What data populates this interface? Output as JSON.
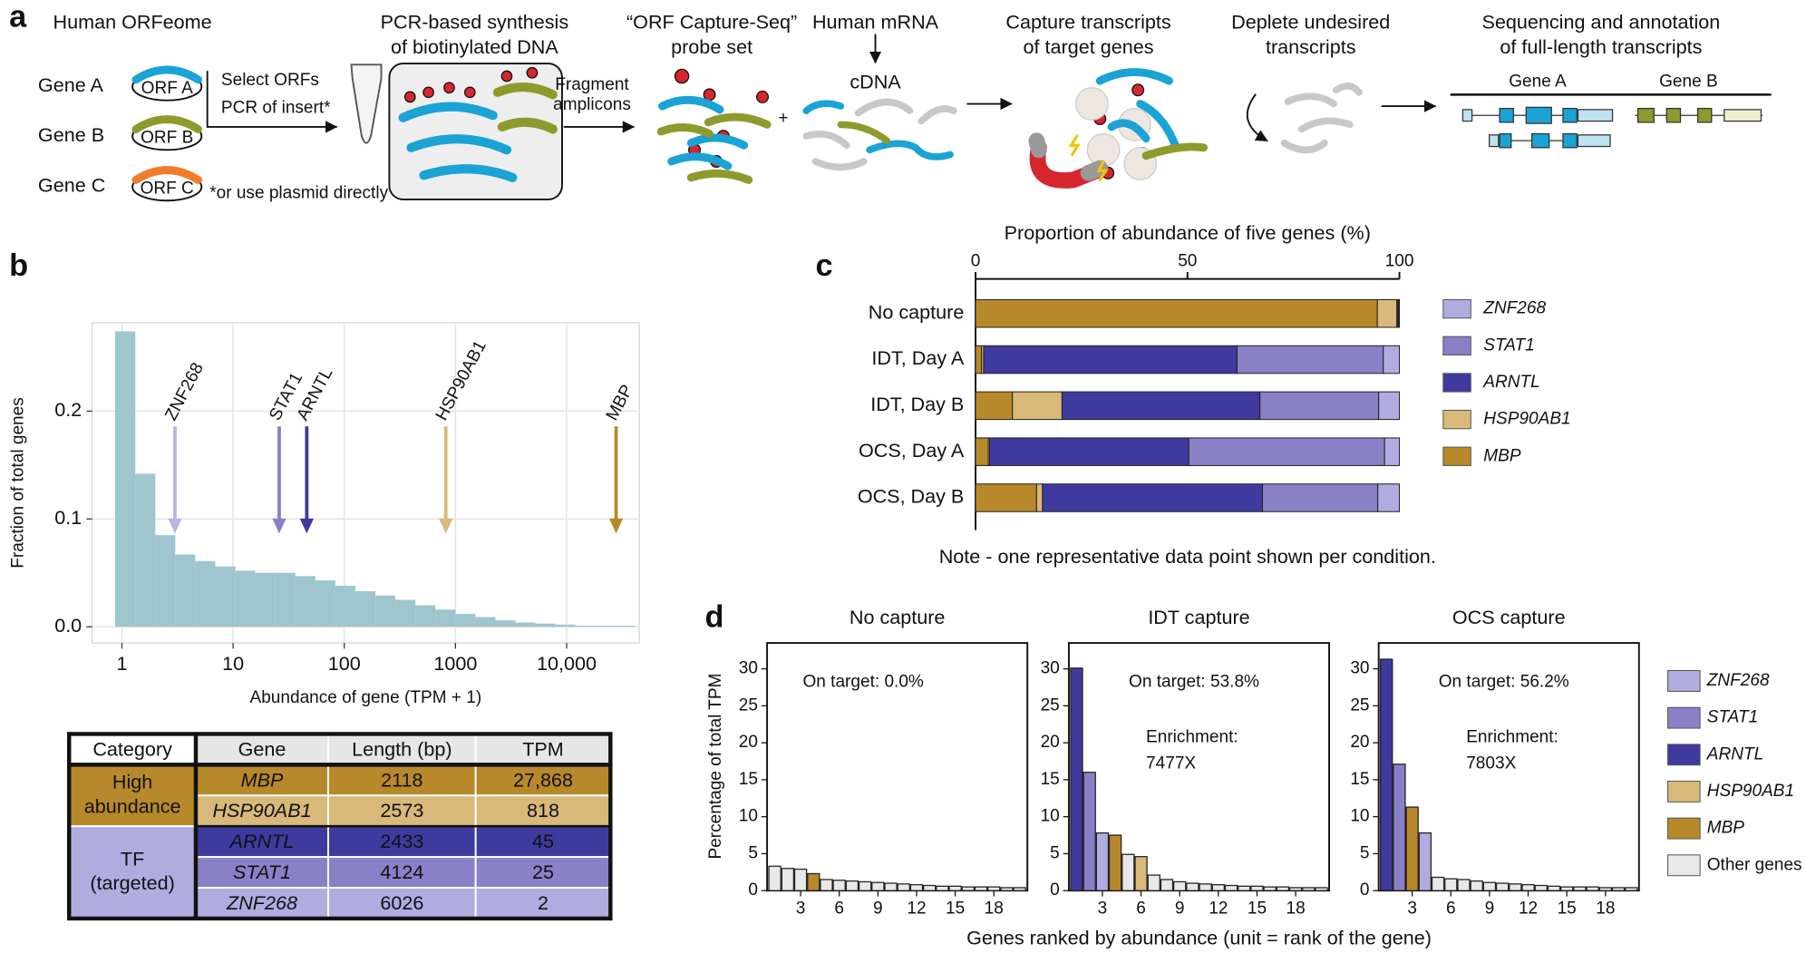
{
  "panel_labels": [
    "a",
    "b",
    "c",
    "d"
  ],
  "diagram": {
    "title": "Human ORFeome",
    "genes": [
      {
        "label": "Gene A",
        "orf": "ORF A"
      },
      {
        "label": "Gene B",
        "orf": "ORF B"
      },
      {
        "label": "Gene C",
        "orf": "ORF C"
      }
    ],
    "select": [
      "Select ORFs",
      "PCR of insert*"
    ],
    "footnote": "*or use plasmid directly",
    "fragment": [
      "Fragment",
      "amplicons"
    ],
    "steps": [
      {
        "lines": [
          "PCR-based synthesis",
          "of biotinylated DNA"
        ]
      },
      {
        "lines": [
          "“ORF Capture-Seq”",
          "probe set"
        ]
      },
      {
        "lines": [
          "Human mRNA"
        ]
      },
      {
        "lines": [
          "Capture transcripts",
          "of target genes"
        ]
      },
      {
        "lines": [
          "Deplete undesired",
          "transcripts"
        ]
      },
      {
        "lines": [
          "Sequencing and annotation",
          "of full-length transcripts"
        ]
      }
    ],
    "plus": "+",
    "cdna": "cDNA",
    "annotated_genes": [
      "Gene A",
      "Gene B"
    ]
  },
  "chart_data": [
    {
      "type": "histogram",
      "ylabel": "Fraction of total genes",
      "xlabel": "Abundance of gene (TPM + 1)",
      "xlog": true,
      "color": "#9fc5cf",
      "grid": true,
      "bins": [
        0.87,
        1.32,
        2.0,
        3.02,
        4.57,
        6.92,
        10.5,
        15.8,
        24.0,
        36.3,
        55.0,
        83.2,
        126,
        191,
        288,
        437,
        661,
        1000,
        1514,
        2291,
        3467,
        5248,
        7943,
        12023,
        18197,
        27542,
        41687
      ],
      "values": [
        0.274,
        0.142,
        0.085,
        0.067,
        0.061,
        0.056,
        0.052,
        0.05,
        0.05,
        0.047,
        0.043,
        0.038,
        0.033,
        0.029,
        0.025,
        0.02,
        0.016,
        0.012,
        0.009,
        0.006,
        0.004,
        0.003,
        0.002,
        0.001,
        0.001,
        0.001
      ],
      "xlim": [
        0.54,
        45000
      ],
      "xticks": [
        1,
        10,
        100,
        1000,
        {
          "value": 10000,
          "label": "10,000"
        }
      ],
      "ylim": [
        -0.015,
        0.282
      ],
      "yticks": [
        {
          "value": 0,
          "label": "0.0"
        },
        {
          "value": 0.1,
          "label": "0.1"
        },
        {
          "value": 0.2,
          "label": "0.2"
        }
      ],
      "annotations": [
        {
          "text": "ZNF268",
          "x": 3,
          "color": "#b9b3e0"
        },
        {
          "text": "STAT1",
          "x": 26,
          "color": "#8a80c8"
        },
        {
          "text": "ARNTL",
          "x": 46,
          "color": "#3f3a9e"
        },
        {
          "text": "HSP90AB1",
          "x": 819,
          "color": "#d8b97a"
        },
        {
          "text": "MBP",
          "x": 27869,
          "color": "#b8892a"
        }
      ]
    },
    {
      "type": "stacked_barh",
      "title": "Proportion of abundance of five genes (%)",
      "note": "Note - one representative data point shown per condition.",
      "categories": [
        "No capture",
        "IDT, Day A",
        "IDT, Day B",
        "OCS, Day A",
        "OCS, Day B"
      ],
      "series": [
        {
          "name": "ZNF268",
          "color": "#b1ace0",
          "values": [
            0.2,
            3.8,
            4.9,
            3.5,
            5.1
          ]
        },
        {
          "name": "STAT1",
          "color": "#8a80c8",
          "values": [
            0.1,
            34.5,
            28.0,
            46.2,
            27.2
          ]
        },
        {
          "name": "ARNTL",
          "color": "#3f3a9e",
          "values": [
            0.3,
            59.8,
            46.7,
            47.0,
            51.9
          ]
        },
        {
          "name": "HSP90AB1",
          "color": "#d8b97a",
          "values": [
            4.6,
            0.5,
            11.7,
            0.3,
            1.4
          ]
        },
        {
          "name": "MBP",
          "color": "#b8892a",
          "values": [
            94.8,
            1.4,
            8.7,
            3.0,
            14.4
          ]
        }
      ],
      "xlim": [
        0,
        100
      ],
      "xticks": [
        0,
        50,
        100
      ]
    },
    {
      "type": "bar",
      "title": "No capture",
      "annotations": [
        "On target: 0.0%"
      ],
      "x": [
        1,
        2,
        3,
        4,
        5,
        6,
        7,
        8,
        9,
        10,
        11,
        12,
        13,
        14,
        15,
        16,
        17,
        18,
        19,
        20
      ],
      "values": [
        3.3,
        3.0,
        2.9,
        2.3,
        1.5,
        1.4,
        1.3,
        1.2,
        1.1,
        1.0,
        0.9,
        0.8,
        0.7,
        0.6,
        0.6,
        0.5,
        0.5,
        0.5,
        0.4,
        0.4
      ],
      "colors": [
        "#e8e8e8",
        "#e8e8e8",
        "#e8e8e8",
        "#b8892a",
        "#e8e8e8",
        "#e8e8e8",
        "#e8e8e8",
        "#e8e8e8",
        "#e8e8e8",
        "#e8e8e8",
        "#e8e8e8",
        "#e8e8e8",
        "#e8e8e8",
        "#e8e8e8",
        "#e8e8e8",
        "#e8e8e8",
        "#e8e8e8",
        "#e8e8e8",
        "#e8e8e8",
        "#e8e8e8"
      ],
      "xlim": [
        0.4,
        20.6
      ],
      "xticks": [
        3,
        6,
        9,
        12,
        15,
        18
      ],
      "ylim": [
        0,
        33.5
      ],
      "yticks": [
        0,
        5,
        10,
        15,
        20,
        25,
        30
      ]
    },
    {
      "type": "bar",
      "title": "IDT capture",
      "annotations": [
        "On target: 53.8%",
        "Enrichment:",
        "7477X"
      ],
      "x": [
        1,
        2,
        3,
        4,
        5,
        6,
        7,
        8,
        9,
        10,
        11,
        12,
        13,
        14,
        15,
        16,
        17,
        18,
        19,
        20
      ],
      "values": [
        30.1,
        16.0,
        7.8,
        7.5,
        4.9,
        4.6,
        2.1,
        1.5,
        1.2,
        1.0,
        0.9,
        0.8,
        0.7,
        0.6,
        0.6,
        0.5,
        0.5,
        0.4,
        0.4,
        0.4
      ],
      "colors": [
        "#3f3a9e",
        "#8a80c8",
        "#b1ace0",
        "#b8892a",
        "#e8e8e8",
        "#d8b97a",
        "#e8e8e8",
        "#e8e8e8",
        "#e8e8e8",
        "#e8e8e8",
        "#e8e8e8",
        "#e8e8e8",
        "#e8e8e8",
        "#e8e8e8",
        "#e8e8e8",
        "#e8e8e8",
        "#e8e8e8",
        "#e8e8e8",
        "#e8e8e8",
        "#e8e8e8"
      ],
      "xlim": [
        0.4,
        20.6
      ],
      "xticks": [
        3,
        6,
        9,
        12,
        15,
        18
      ],
      "ylim": [
        0,
        33.5
      ],
      "yticks": [
        0,
        5,
        10,
        15,
        20,
        25,
        30
      ]
    },
    {
      "type": "bar",
      "title": "OCS capture",
      "annotations": [
        "On target: 56.2%",
        "Enrichment:",
        "7803X"
      ],
      "x": [
        1,
        2,
        3,
        4,
        5,
        6,
        7,
        8,
        9,
        10,
        11,
        12,
        13,
        14,
        15,
        16,
        17,
        18,
        19,
        20
      ],
      "values": [
        31.3,
        17.1,
        11.3,
        7.8,
        1.8,
        1.6,
        1.5,
        1.3,
        1.1,
        1.0,
        0.9,
        0.8,
        0.7,
        0.6,
        0.5,
        0.5,
        0.5,
        0.4,
        0.4,
        0.4
      ],
      "colors": [
        "#3f3a9e",
        "#8a80c8",
        "#b8892a",
        "#b1ace0",
        "#e8e8e8",
        "#e8e8e8",
        "#e8e8e8",
        "#e8e8e8",
        "#e8e8e8",
        "#e8e8e8",
        "#e8e8e8",
        "#e8e8e8",
        "#e8e8e8",
        "#e8e8e8",
        "#e8e8e8",
        "#e8e8e8",
        "#e8e8e8",
        "#e8e8e8",
        "#e8e8e8",
        "#e8e8e8"
      ],
      "xlim": [
        0.4,
        20.6
      ],
      "xticks": [
        3,
        6,
        9,
        12,
        15,
        18
      ],
      "ylim": [
        0,
        33.5
      ],
      "yticks": [
        0,
        5,
        10,
        15,
        20,
        25,
        30
      ]
    }
  ],
  "panel_d": {
    "ylabel": "Percentage of total TPM",
    "xlabel": "Genes ranked by abundance (unit = rank of the gene)",
    "legend": [
      {
        "name": "ZNF268",
        "color": "#b1ace0"
      },
      {
        "name": "STAT1",
        "color": "#8a80c8"
      },
      {
        "name": "ARNTL",
        "color": "#3f3a9e"
      },
      {
        "name": "HSP90AB1",
        "color": "#d8b97a"
      },
      {
        "name": "MBP",
        "color": "#b8892a"
      },
      {
        "name": "Other genes",
        "color": "#e8e8e8"
      }
    ]
  },
  "table": {
    "header": [
      "Category",
      "Gene",
      "Length (bp)",
      "TPM"
    ],
    "groups": [
      {
        "label": [
          "High",
          "abundance"
        ],
        "color": "#b8892a",
        "rows": [
          {
            "cells": [
              "MBP",
              "2118",
              "27,868"
            ],
            "color": "#b8892a",
            "text": "#111"
          },
          {
            "cells": [
              "HSP90AB1",
              "2573",
              "818"
            ],
            "color": "#d8b97a",
            "text": "#111"
          }
        ]
      },
      {
        "label": [
          "TF",
          "(targeted)"
        ],
        "color": "#b1ace0",
        "rows": [
          {
            "cells": [
              "ARNTL",
              "2433",
              "45"
            ],
            "color": "#3f3a9e",
            "text": "#ffffff"
          },
          {
            "cells": [
              "STAT1",
              "4124",
              "25"
            ],
            "color": "#8a80c8",
            "text": "#111"
          },
          {
            "cells": [
              "ZNF268",
              "6026",
              "2"
            ],
            "color": "#b1ace0",
            "text": "#111"
          }
        ]
      }
    ]
  }
}
